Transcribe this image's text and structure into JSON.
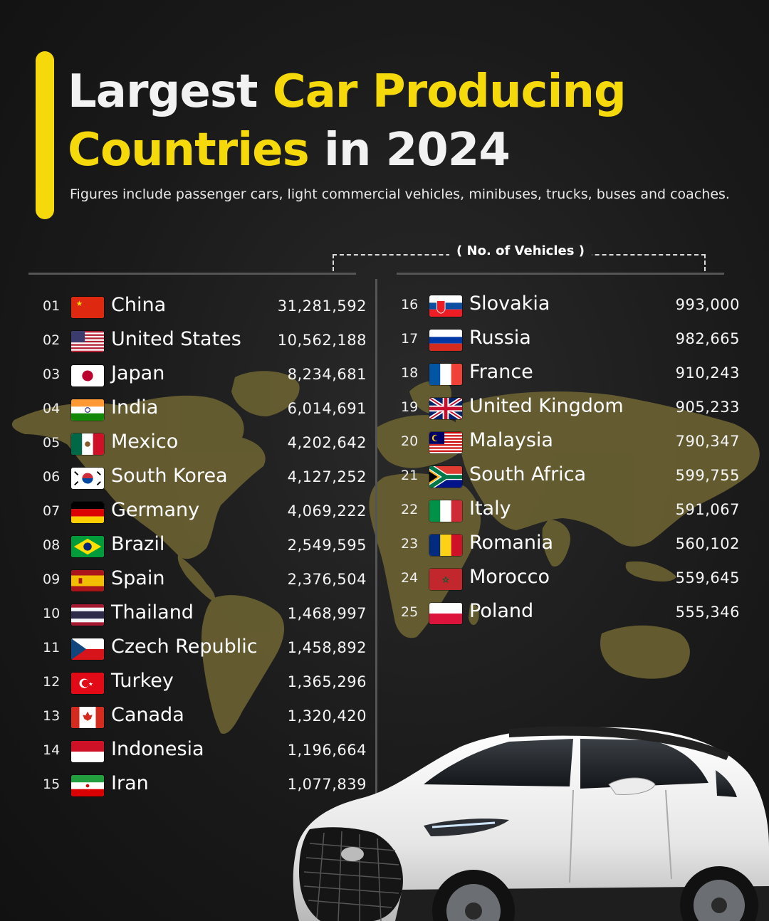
{
  "title": {
    "part1": "Largest ",
    "part2": "Car Producing",
    "part3": "Countries",
    "part4": " in 2024"
  },
  "subtitle": "Figures include passenger cars, light commercial vehicles, minibuses, trucks, buses and coaches.",
  "units_label": "( No. of Vehicles )",
  "colors": {
    "accent": "#f5d90a",
    "background": "#1c1c1c",
    "map": "#6b6232",
    "text": "#ffffff"
  },
  "rankings": [
    {
      "rank": "01",
      "country": "China",
      "value": "31,281,592",
      "flag": "china-flag-icon"
    },
    {
      "rank": "02",
      "country": "United States",
      "value": "10,562,188",
      "flag": "united-states-flag-icon"
    },
    {
      "rank": "03",
      "country": "Japan",
      "value": "8,234,681",
      "flag": "japan-flag-icon"
    },
    {
      "rank": "04",
      "country": "India",
      "value": "6,014,691",
      "flag": "india-flag-icon"
    },
    {
      "rank": "05",
      "country": "Mexico",
      "value": "4,202,642",
      "flag": "mexico-flag-icon"
    },
    {
      "rank": "06",
      "country": "South Korea",
      "value": "4,127,252",
      "flag": "south-korea-flag-icon"
    },
    {
      "rank": "07",
      "country": "Germany",
      "value": "4,069,222",
      "flag": "germany-flag-icon"
    },
    {
      "rank": "08",
      "country": "Brazil",
      "value": "2,549,595",
      "flag": "brazil-flag-icon"
    },
    {
      "rank": "09",
      "country": "Spain",
      "value": "2,376,504",
      "flag": "spain-flag-icon"
    },
    {
      "rank": "10",
      "country": "Thailand",
      "value": "1,468,997",
      "flag": "thailand-flag-icon"
    },
    {
      "rank": "11",
      "country": "Czech Republic",
      "value": "1,458,892",
      "flag": "czech-republic-flag-icon"
    },
    {
      "rank": "12",
      "country": "Turkey",
      "value": "1,365,296",
      "flag": "turkey-flag-icon"
    },
    {
      "rank": "13",
      "country": "Canada",
      "value": "1,320,420",
      "flag": "canada-flag-icon"
    },
    {
      "rank": "14",
      "country": "Indonesia",
      "value": "1,196,664",
      "flag": "indonesia-flag-icon"
    },
    {
      "rank": "15",
      "country": "Iran",
      "value": "1,077,839",
      "flag": "iran-flag-icon"
    },
    {
      "rank": "16",
      "country": "Slovakia",
      "value": "993,000",
      "flag": "slovakia-flag-icon"
    },
    {
      "rank": "17",
      "country": "Russia",
      "value": "982,665",
      "flag": "russia-flag-icon"
    },
    {
      "rank": "18",
      "country": "France",
      "value": "910,243",
      "flag": "france-flag-icon"
    },
    {
      "rank": "19",
      "country": "United Kingdom",
      "value": "905,233",
      "flag": "united-kingdom-flag-icon"
    },
    {
      "rank": "20",
      "country": "Malaysia",
      "value": "790,347",
      "flag": "malaysia-flag-icon"
    },
    {
      "rank": "21",
      "country": "South Africa",
      "value": "599,755",
      "flag": "south-africa-flag-icon"
    },
    {
      "rank": "22",
      "country": "Italy",
      "value": "591,067",
      "flag": "italy-flag-icon"
    },
    {
      "rank": "23",
      "country": "Romania",
      "value": "560,102",
      "flag": "romania-flag-icon"
    },
    {
      "rank": "24",
      "country": "Morocco",
      "value": "559,645",
      "flag": "morocco-flag-icon"
    },
    {
      "rank": "25",
      "country": "Poland",
      "value": "555,346",
      "flag": "poland-flag-icon"
    }
  ]
}
